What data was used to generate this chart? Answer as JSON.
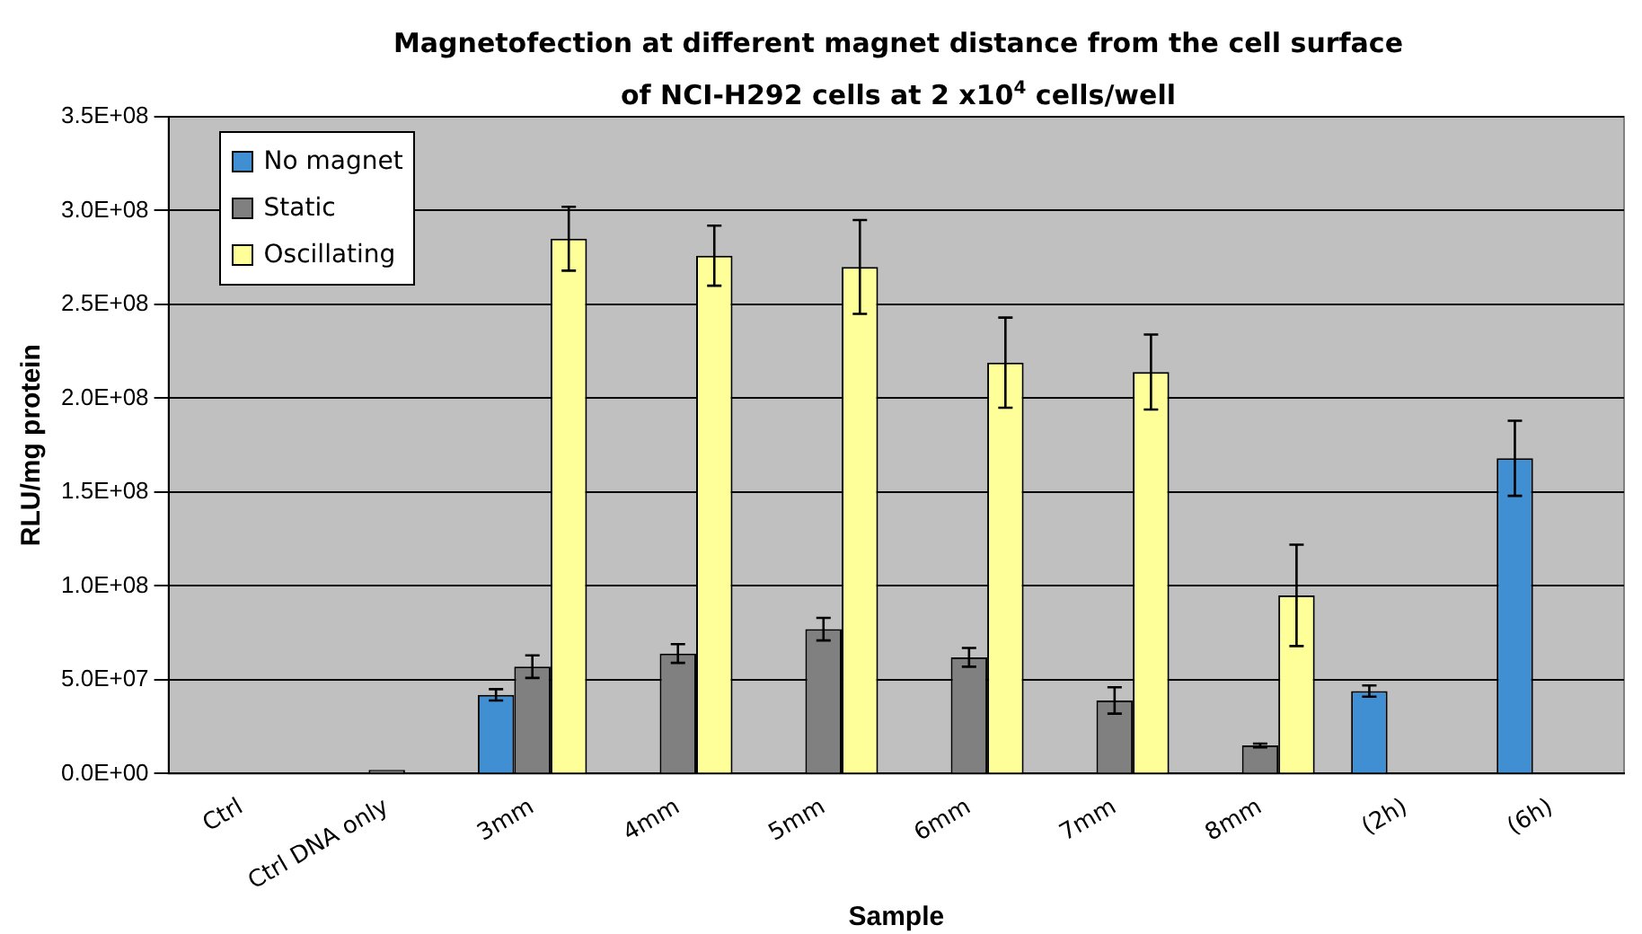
{
  "chart_data": {
    "type": "bar",
    "title": "Magnetofection at different magnet distance from the cell surface",
    "subtitle": "of NCI-H292 cells at 2 x10$^{4}$ cells/well",
    "xlabel": "Sample",
    "ylabel": "RLU/mg protein",
    "categories": [
      "Ctrl",
      "Ctrl DNA only",
      "3mm",
      "4mm",
      "5mm",
      "6mm",
      "7mm",
      "8mm",
      "(2h)",
      "(6h)"
    ],
    "series": [
      {
        "name": "No magnet",
        "color": "#3f8fd2",
        "values": [
          null,
          null,
          42000000,
          null,
          null,
          null,
          null,
          null,
          44000000,
          168000000
        ],
        "errors": [
          null,
          null,
          3000000,
          null,
          null,
          null,
          null,
          null,
          3000000,
          20000000
        ]
      },
      {
        "name": "Static",
        "color": "#808080",
        "values": [
          0,
          2000000,
          57000000,
          64000000,
          77000000,
          62000000,
          39000000,
          15000000,
          null,
          null
        ],
        "errors": [
          null,
          null,
          6000000,
          5000000,
          6000000,
          5000000,
          7000000,
          1000000,
          null,
          null
        ]
      },
      {
        "name": "Oscillating",
        "color": "#ffff99",
        "values": [
          null,
          null,
          285000000,
          276000000,
          270000000,
          219000000,
          214000000,
          95000000,
          null,
          null
        ],
        "errors": [
          null,
          null,
          17000000,
          16000000,
          25000000,
          24000000,
          20000000,
          27000000,
          null,
          null
        ]
      }
    ],
    "ylim": [
      0,
      350000000
    ],
    "yticks": [
      {
        "value": 0,
        "label": "0.0E+00"
      },
      {
        "value": 50000000,
        "label": "5.0E+07"
      },
      {
        "value": 100000000,
        "label": "1.0E+08"
      },
      {
        "value": 150000000,
        "label": "1.5E+08"
      },
      {
        "value": 200000000,
        "label": "2.0E+08"
      },
      {
        "value": 250000000,
        "label": "2.5E+08"
      },
      {
        "value": 300000000,
        "label": "3.0E+08"
      },
      {
        "value": 350000000,
        "label": "3.5E+08"
      }
    ],
    "grid": "y",
    "legend": "top left"
  }
}
